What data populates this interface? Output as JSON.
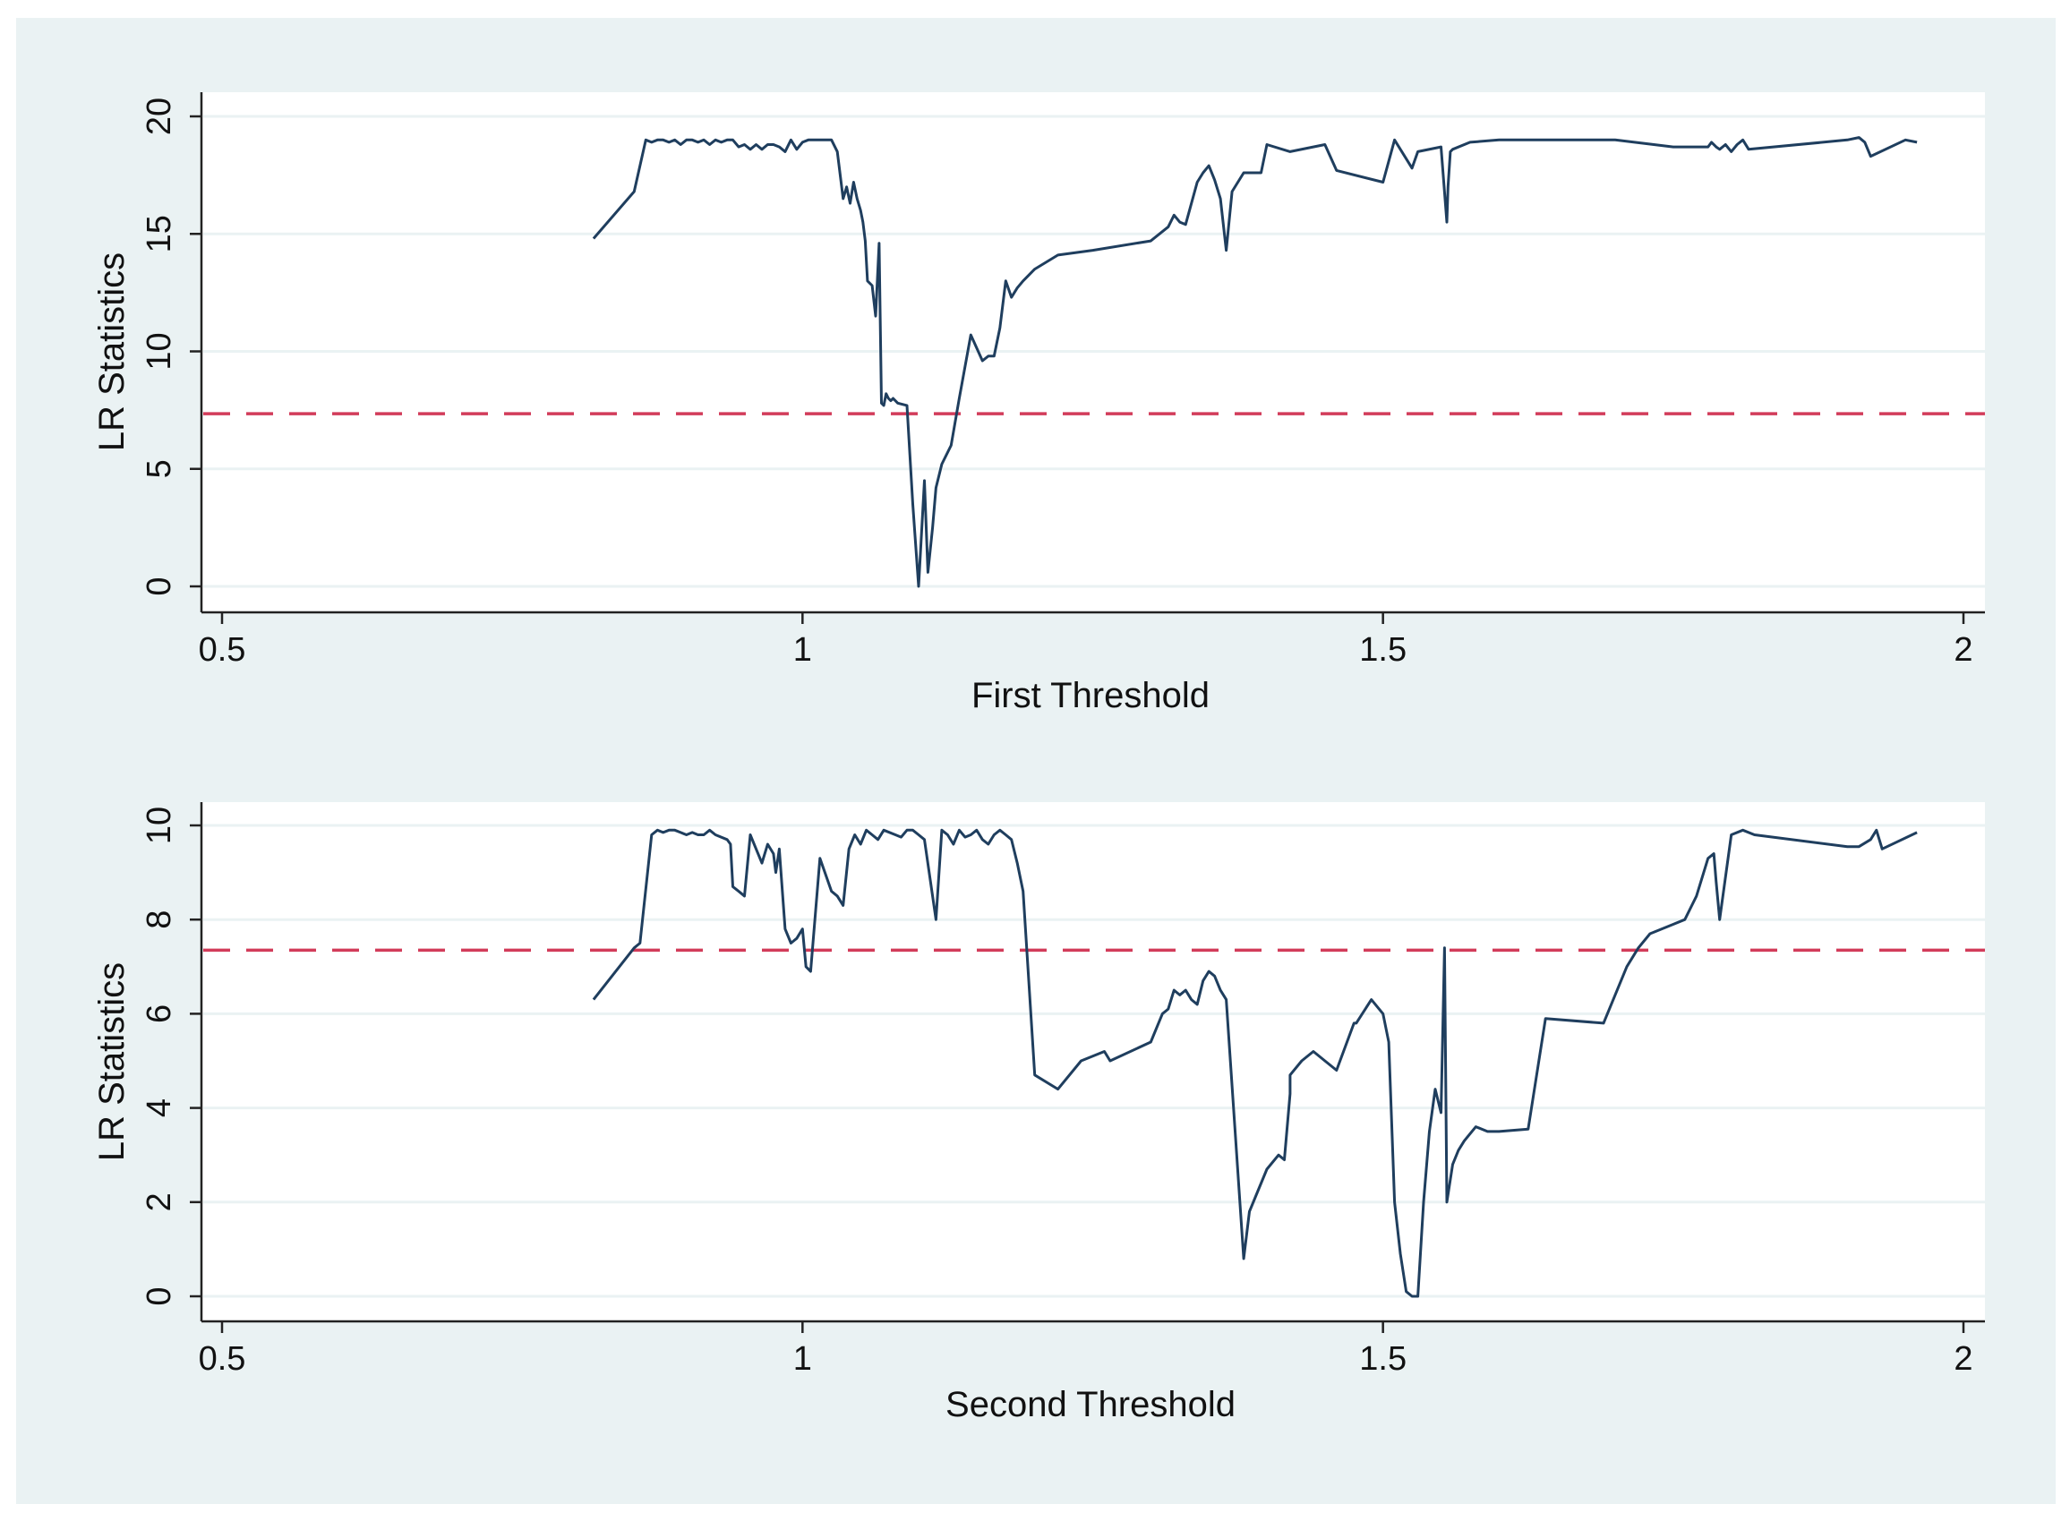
{
  "chart_data": [
    {
      "type": "line",
      "xlabel": "First Threshold",
      "ylabel": "LR Statistics",
      "xlim": [
        0.5,
        2
      ],
      "ylim": [
        0,
        20
      ],
      "xticks": [
        0.5,
        1,
        1.5,
        2
      ],
      "xtick_labels": [
        "0.5",
        "1",
        "1.5",
        "2"
      ],
      "yticks": [
        0,
        5,
        10,
        15,
        20
      ],
      "ytick_labels": [
        "0",
        "5",
        "10",
        "15",
        "20"
      ],
      "grid": true,
      "critical_value": 7.35,
      "colors": {
        "line": "#1f3e5e",
        "critical": "#d23c5a",
        "panel": "#eaf2f3",
        "grid": "#eaf2f3"
      },
      "series": [
        {
          "x": [
            0.82,
            0.855,
            0.865,
            0.87,
            0.875,
            0.88,
            0.885,
            0.89,
            0.895,
            0.9,
            0.905,
            0.91,
            0.915,
            0.92,
            0.925,
            0.93,
            0.935,
            0.94,
            0.945,
            0.95,
            0.955,
            0.96,
            0.965,
            0.97,
            0.975,
            0.98,
            0.985,
            0.99,
            0.995,
            1.0,
            1.005,
            1.01,
            1.015,
            1.02,
            1.025,
            1.03,
            1.035,
            1.038,
            1.041,
            1.044,
            1.047,
            1.05,
            1.052,
            1.054,
            1.056,
            1.06,
            1.063,
            1.066,
            1.068,
            1.07,
            1.072,
            1.074,
            1.076,
            1.078,
            1.082,
            1.09,
            1.095,
            1.1,
            1.105,
            1.108,
            1.112,
            1.115,
            1.12,
            1.128,
            1.135,
            1.145,
            1.155,
            1.16,
            1.165,
            1.17,
            1.175,
            1.18,
            1.185,
            1.19,
            1.2,
            1.22,
            1.25,
            1.3,
            1.315,
            1.32,
            1.325,
            1.33,
            1.34,
            1.345,
            1.35,
            1.355,
            1.36,
            1.365,
            1.37,
            1.375,
            1.38,
            1.395,
            1.4,
            1.42,
            1.45,
            1.46,
            1.46,
            1.5,
            1.51,
            1.525,
            1.53,
            1.55,
            1.555,
            1.556,
            1.558,
            1.56,
            1.575,
            1.6,
            1.65,
            1.7,
            1.75,
            1.78,
            1.783,
            1.787,
            1.79,
            1.795,
            1.8,
            1.805,
            1.81,
            1.815,
            1.9,
            1.91,
            1.915,
            1.92,
            1.95,
            1.96
          ],
          "y": [
            14.8,
            16.8,
            19.0,
            18.9,
            19.0,
            19.0,
            18.9,
            19.0,
            18.8,
            19.0,
            19.0,
            18.9,
            19.0,
            18.8,
            19.0,
            18.9,
            19.0,
            19.0,
            18.7,
            18.8,
            18.6,
            18.8,
            18.6,
            18.8,
            18.8,
            18.7,
            18.5,
            19.0,
            18.6,
            18.9,
            19.0,
            19.0,
            19.0,
            19.0,
            19.0,
            18.5,
            16.5,
            17.0,
            16.3,
            17.2,
            16.5,
            16.0,
            15.5,
            14.7,
            13.0,
            12.8,
            11.5,
            14.6,
            7.8,
            7.7,
            8.2,
            8.0,
            7.9,
            8.0,
            7.8,
            7.7,
            3.5,
            0.0,
            4.5,
            0.6,
            2.5,
            4.2,
            5.2,
            6.0,
            8.0,
            10.7,
            9.6,
            9.8,
            9.8,
            11.0,
            13.0,
            12.3,
            12.7,
            13.0,
            13.5,
            14.1,
            14.3,
            14.7,
            15.3,
            15.8,
            15.5,
            15.4,
            17.2,
            17.6,
            17.9,
            17.3,
            16.5,
            14.3,
            16.8,
            17.2,
            17.6,
            17.6,
            18.8,
            18.5,
            18.8,
            17.7,
            17.7,
            17.2,
            19.0,
            17.8,
            18.5,
            18.7,
            15.5,
            17.0,
            18.5,
            18.6,
            18.9,
            19.0,
            19.0,
            19.0,
            18.7,
            18.7,
            18.9,
            18.7,
            18.6,
            18.8,
            18.5,
            18.8,
            19.0,
            18.6,
            19.0,
            19.1,
            18.9,
            18.3,
            19.0,
            18.9
          ],
          "critical": null
        }
      ]
    },
    {
      "type": "line",
      "xlabel": "Second Threshold",
      "ylabel": "LR Statistics",
      "xlim": [
        0.5,
        2
      ],
      "ylim": [
        0,
        10
      ],
      "xticks": [
        0.5,
        1,
        1.5,
        2
      ],
      "xtick_labels": [
        "0.5",
        "1",
        "1.5",
        "2"
      ],
      "yticks": [
        0,
        2,
        4,
        6,
        8,
        10
      ],
      "ytick_labels": [
        "0",
        "2",
        "4",
        "6",
        "8",
        "10"
      ],
      "grid": true,
      "critical_value": 7.35,
      "colors": {
        "line": "#1f3e5e",
        "critical": "#d23c5a",
        "panel": "#eaf2f3",
        "grid": "#eaf2f3"
      },
      "series": [
        {
          "x": [
            0.82,
            0.855,
            0.86,
            0.87,
            0.875,
            0.88,
            0.885,
            0.89,
            0.895,
            0.9,
            0.905,
            0.91,
            0.915,
            0.92,
            0.925,
            0.935,
            0.938,
            0.94,
            0.945,
            0.95,
            0.955,
            0.96,
            0.965,
            0.97,
            0.975,
            0.977,
            0.98,
            0.985,
            0.99,
            0.995,
            1.0,
            1.003,
            1.007,
            1.015,
            1.025,
            1.03,
            1.035,
            1.04,
            1.045,
            1.05,
            1.055,
            1.06,
            1.065,
            1.07,
            1.08,
            1.085,
            1.09,
            1.095,
            1.1,
            1.105,
            1.115,
            1.12,
            1.125,
            1.13,
            1.135,
            1.14,
            1.145,
            1.15,
            1.155,
            1.16,
            1.165,
            1.17,
            1.175,
            1.18,
            1.185,
            1.19,
            1.2,
            1.22,
            1.24,
            1.26,
            1.265,
            1.3,
            1.31,
            1.315,
            1.32,
            1.325,
            1.33,
            1.335,
            1.34,
            1.345,
            1.35,
            1.355,
            1.36,
            1.365,
            1.38,
            1.385,
            1.39,
            1.4,
            1.41,
            1.415,
            1.42,
            1.42,
            1.43,
            1.44,
            1.45,
            1.46,
            1.475,
            1.477,
            1.49,
            1.5,
            1.505,
            1.51,
            1.515,
            1.52,
            1.525,
            1.53,
            1.535,
            1.54,
            1.545,
            1.55,
            1.553,
            1.555,
            1.56,
            1.565,
            1.57,
            1.58,
            1.59,
            1.6,
            1.625,
            1.64,
            1.69,
            1.71,
            1.72,
            1.73,
            1.75,
            1.76,
            1.77,
            1.78,
            1.785,
            1.787,
            1.79,
            1.8,
            1.81,
            1.82,
            1.9,
            1.91,
            1.92,
            1.925,
            1.93,
            1.96
          ],
          "y": [
            6.3,
            7.4,
            7.5,
            9.8,
            9.9,
            9.85,
            9.9,
            9.9,
            9.85,
            9.8,
            9.85,
            9.8,
            9.8,
            9.9,
            9.8,
            9.7,
            9.6,
            8.7,
            8.6,
            8.5,
            9.8,
            9.5,
            9.2,
            9.6,
            9.4,
            9.0,
            9.5,
            7.8,
            7.5,
            7.6,
            7.8,
            7.0,
            6.9,
            9.3,
            8.6,
            8.5,
            8.3,
            9.5,
            9.8,
            9.6,
            9.9,
            9.8,
            9.7,
            9.9,
            9.8,
            9.75,
            9.9,
            9.9,
            9.8,
            9.7,
            8.0,
            9.9,
            9.8,
            9.6,
            9.9,
            9.75,
            9.8,
            9.9,
            9.7,
            9.6,
            9.8,
            9.9,
            9.8,
            9.7,
            9.2,
            8.6,
            4.7,
            4.4,
            5.0,
            5.2,
            5.0,
            5.4,
            6.0,
            6.1,
            6.5,
            6.4,
            6.5,
            6.3,
            6.2,
            6.7,
            6.9,
            6.8,
            6.5,
            6.3,
            0.8,
            1.8,
            2.1,
            2.7,
            3.0,
            2.9,
            4.3,
            4.7,
            5.0,
            5.2,
            5.0,
            4.8,
            5.8,
            5.8,
            6.3,
            6.0,
            5.4,
            2.0,
            0.9,
            0.1,
            0.0,
            0.0,
            2.0,
            3.5,
            4.4,
            3.9,
            7.4,
            2.0,
            2.8,
            3.1,
            3.3,
            3.6,
            3.5,
            3.5,
            3.55,
            5.9,
            5.8,
            7.0,
            7.4,
            7.7,
            7.9,
            8.0,
            8.5,
            9.3,
            9.4,
            8.8,
            8.0,
            9.8,
            9.9,
            9.8,
            9.55,
            9.55,
            9.7,
            9.9,
            9.5,
            9.85
          ]
        }
      ]
    }
  ]
}
